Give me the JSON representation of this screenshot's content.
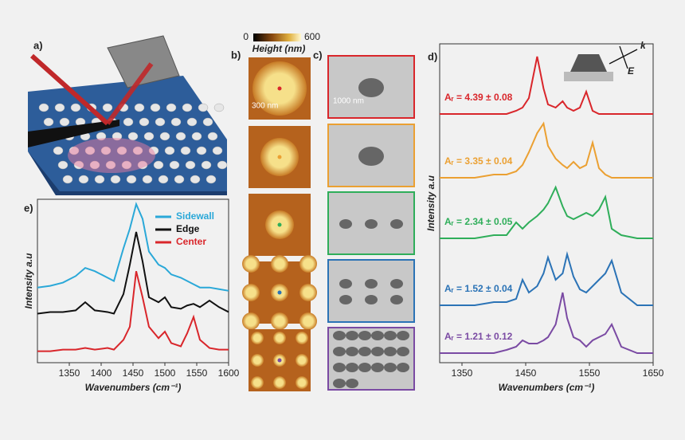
{
  "figure": {
    "panel_labels": [
      "a)",
      "b)",
      "c)",
      "d)",
      "e)"
    ],
    "colorbar": {
      "label": "Height (nm)",
      "min": 0,
      "max": 600
    },
    "scale_bars": [
      "300 nm",
      "1000 nm"
    ],
    "inset_labels": [
      "k",
      "E"
    ]
  },
  "chart_data": [
    {
      "type": "line",
      "ylabel": "Intensity a.u",
      "xlabel": "Wavenumbers (cm⁻¹)",
      "xlim": [
        1300,
        1600
      ],
      "xticks": [
        1350,
        1400,
        1450,
        1500,
        1550,
        1600
      ],
      "ylim": [
        0,
        100
      ],
      "legend": "top-right",
      "x": [
        1300,
        1320,
        1340,
        1360,
        1375,
        1390,
        1410,
        1420,
        1435,
        1445,
        1455,
        1465,
        1475,
        1490,
        1500,
        1510,
        1525,
        1535,
        1545,
        1555,
        1570,
        1585,
        1600
      ],
      "series": [
        {
          "name": "Sidewall",
          "color": "#2aa8d8",
          "values": [
            46,
            47,
            49,
            53,
            58,
            56,
            52,
            50,
            70,
            82,
            97,
            88,
            68,
            60,
            58,
            54,
            52,
            50,
            48,
            46,
            46,
            45,
            44
          ]
        },
        {
          "name": "Edge",
          "color": "#111111",
          "values": [
            30,
            31,
            31,
            32,
            37,
            32,
            31,
            30,
            42,
            60,
            80,
            62,
            40,
            37,
            40,
            34,
            33,
            35,
            36,
            34,
            38,
            34,
            31
          ]
        },
        {
          "name": "Center",
          "color": "#d9262b",
          "values": [
            7,
            7,
            8,
            8,
            9,
            8,
            9,
            8,
            14,
            22,
            56,
            40,
            22,
            15,
            19,
            12,
            10,
            18,
            28,
            14,
            9,
            8,
            8
          ]
        }
      ]
    },
    {
      "type": "line",
      "ylabel": "Intensity a.u",
      "xlabel": "Wavenumbers (cm⁻¹)",
      "xlim": [
        1315,
        1650
      ],
      "xticks": [
        1350,
        1450,
        1550,
        1650
      ],
      "ylim": [
        0,
        100
      ],
      "x": [
        1315,
        1340,
        1370,
        1400,
        1420,
        1435,
        1445,
        1455,
        1468,
        1478,
        1485,
        1497,
        1508,
        1515,
        1525,
        1535,
        1545,
        1555,
        1565,
        1575,
        1585,
        1600,
        1625,
        1650
      ],
      "series": [
        {
          "name": "Aᵣ = 4.39 ± 0.08",
          "color": "#d9262b",
          "values": [
            78,
            78,
            78,
            78,
            78,
            79,
            80,
            83,
            96,
            86,
            81,
            80,
            82,
            80,
            79,
            80,
            85,
            79,
            78,
            78,
            78,
            78,
            78,
            78
          ]
        },
        {
          "name": "Aᵣ = 3.35 ± 0.04",
          "color": "#eba032",
          "values": [
            58,
            58,
            58,
            59,
            59,
            60,
            62,
            66,
            72,
            75,
            68,
            64,
            62,
            61,
            63,
            61,
            62,
            69,
            61,
            59,
            58,
            58,
            58,
            58
          ]
        },
        {
          "name": "Aᵣ = 2.34 ± 0.05",
          "color": "#2fae5a",
          "values": [
            39,
            39,
            39,
            40,
            40,
            44,
            42,
            44,
            46,
            48,
            50,
            55,
            49,
            46,
            45,
            46,
            47,
            46,
            48,
            52,
            42,
            40,
            39,
            39
          ]
        },
        {
          "name": "Aᵣ = 1.52 ± 0.04",
          "color": "#2b73b6",
          "values": [
            18,
            18,
            18,
            19,
            19,
            20,
            26,
            22,
            24,
            28,
            33,
            26,
            28,
            34,
            27,
            23,
            22,
            24,
            26,
            28,
            32,
            22,
            18,
            18
          ]
        },
        {
          "name": "Aᵣ = 1.21 ± 0.12",
          "color": "#7a4aa3",
          "values": [
            3,
            3,
            3,
            3,
            4,
            5,
            7,
            6,
            6,
            7,
            8,
            12,
            22,
            14,
            8,
            7,
            5,
            7,
            8,
            9,
            12,
            5,
            3,
            3
          ]
        }
      ]
    }
  ]
}
